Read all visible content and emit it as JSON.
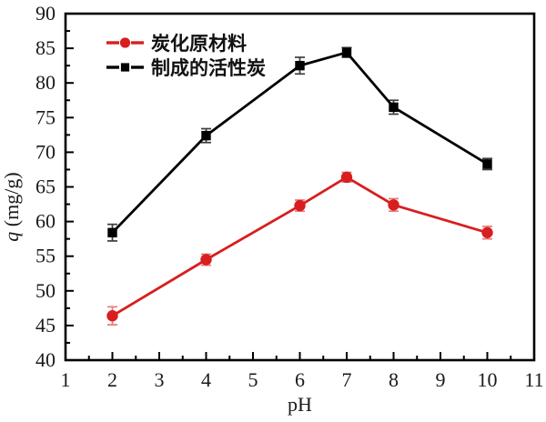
{
  "figure": {
    "background_color": "#ffffff",
    "border_color": "#000000"
  },
  "chart_data": {
    "type": "line",
    "title": "",
    "xlabel": "pH",
    "ylabel": "q (mg/g)",
    "ylabel_italic": "q",
    "ylabel_rest": " (mg/g)",
    "xlim": [
      1,
      11
    ],
    "ylim": [
      40,
      90
    ],
    "x_major_step": 1,
    "x_minor_step": 0.5,
    "y_major_step": 5,
    "y_minor_step": 2.5,
    "grid": false,
    "legend_position": "top-left-inside",
    "x": [
      2,
      4,
      6,
      7,
      8,
      10
    ],
    "series": [
      {
        "name": "炭化原材料",
        "color": "#d81e1e",
        "errorbar_color": "#e87a7a",
        "marker": "circle",
        "values": [
          46.4,
          54.5,
          62.3,
          66.4,
          62.4,
          58.4
        ],
        "errors": [
          1.3,
          0.8,
          0.8,
          0.7,
          0.9,
          0.9
        ]
      },
      {
        "name": "制成的活性炭",
        "color": "#000000",
        "errorbar_color": "#3d3d3d",
        "marker": "square",
        "values": [
          58.4,
          72.4,
          82.5,
          84.4,
          76.5,
          68.3
        ],
        "errors": [
          1.2,
          1.0,
          1.2,
          0.7,
          1.0,
          0.8
        ]
      }
    ]
  }
}
